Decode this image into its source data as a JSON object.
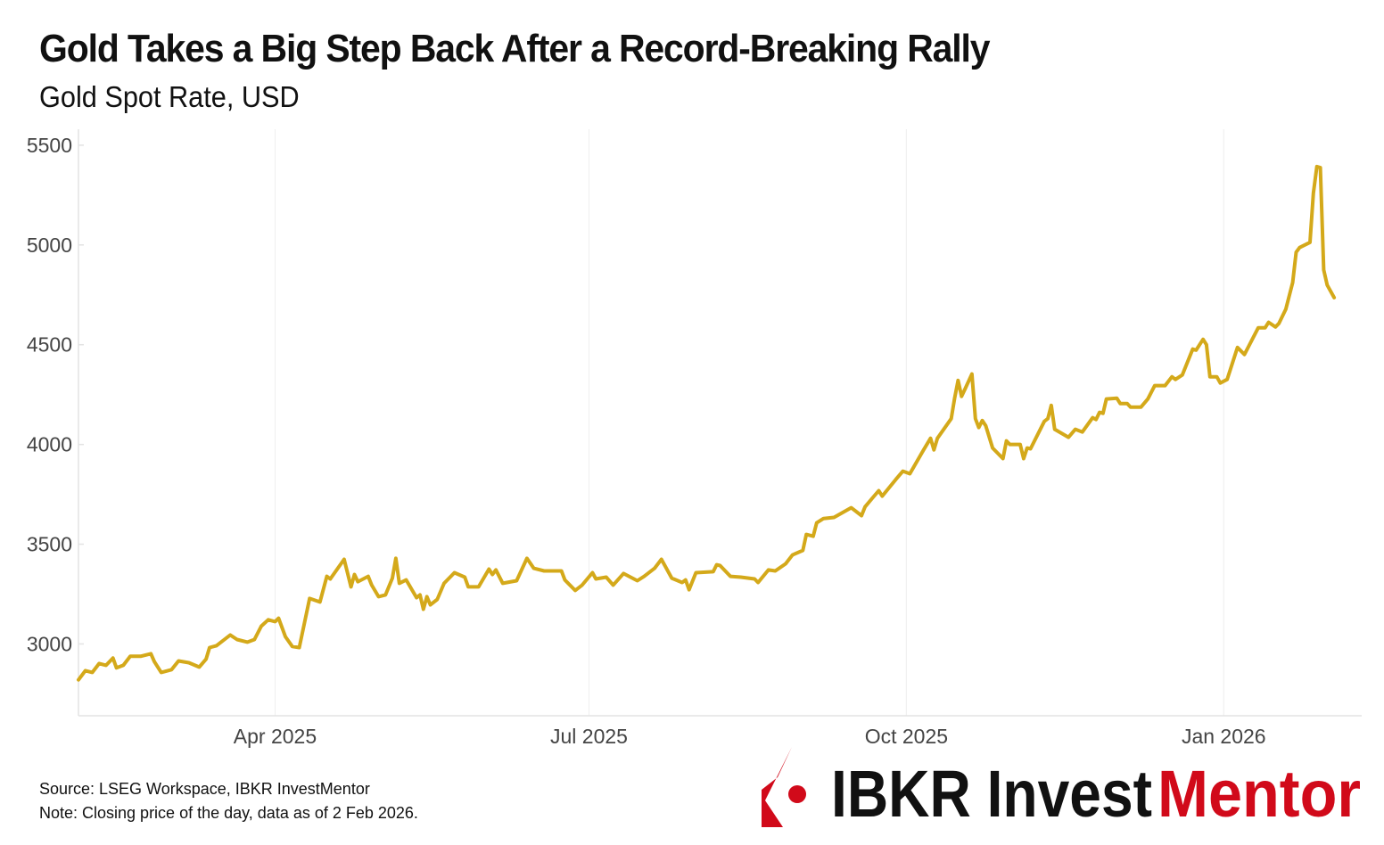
{
  "header": {
    "title": "Gold Takes a Big Step Back After a Record-Breaking Rally",
    "subtitle": "Gold Spot Rate, USD"
  },
  "footer": {
    "source": "Source: LSEG Workspace, IBKR InvestMentor",
    "note": "Note: Closing price of the day, data as of 2 Feb 2026."
  },
  "logo": {
    "text_dark": "IBKR Invest",
    "text_red": "Mentor",
    "red": "#D10A1A"
  },
  "chart_data": {
    "type": "line",
    "title": "Gold Takes a Big Step Back After a Record-Breaking Rally",
    "subtitle": "Gold Spot Rate, USD",
    "xlabel": "",
    "ylabel": "",
    "xlim": [
      "2025-02-03",
      "2026-02-10"
    ],
    "ylim": [
      2640,
      5580
    ],
    "y_ticks": [
      3000,
      3500,
      4000,
      4500,
      5000,
      5500
    ],
    "x_ticks": [
      {
        "date": "2025-04-01",
        "label": "Apr 2025"
      },
      {
        "date": "2025-07-01",
        "label": "Jul 2025"
      },
      {
        "date": "2025-10-01",
        "label": "Oct 2025"
      },
      {
        "date": "2026-01-01",
        "label": "Jan 2026"
      }
    ],
    "grid": "vertical only (months)",
    "line_color": "#D4A91A",
    "series": [
      {
        "x": [
          "2025-02-03",
          "2025-02-05",
          "2025-02-07",
          "2025-02-09",
          "2025-02-11",
          "2025-02-13",
          "2025-02-14",
          "2025-02-16",
          "2025-02-18",
          "2025-02-21",
          "2025-02-24",
          "2025-02-25",
          "2025-02-27",
          "2025-03-02",
          "2025-03-04",
          "2025-03-07",
          "2025-03-10",
          "2025-03-12",
          "2025-03-13",
          "2025-03-15",
          "2025-03-19",
          "2025-03-21",
          "2025-03-24",
          "2025-03-26",
          "2025-03-28",
          "2025-03-30",
          "2025-04-01",
          "2025-04-02",
          "2025-04-04",
          "2025-04-06",
          "2025-04-08",
          "2025-04-11",
          "2025-04-14",
          "2025-04-16",
          "2025-04-17",
          "2025-04-21",
          "2025-04-23",
          "2025-04-24",
          "2025-04-25",
          "2025-04-28",
          "2025-04-29",
          "2025-05-01",
          "2025-05-03",
          "2025-05-05",
          "2025-05-06",
          "2025-05-07",
          "2025-05-09",
          "2025-05-12",
          "2025-05-13",
          "2025-05-14",
          "2025-05-15",
          "2025-05-16",
          "2025-05-18",
          "2025-05-20",
          "2025-05-23",
          "2025-05-26",
          "2025-05-27",
          "2025-05-30",
          "2025-06-02",
          "2025-06-03",
          "2025-06-04",
          "2025-06-06",
          "2025-06-10",
          "2025-06-13",
          "2025-06-15",
          "2025-06-18",
          "2025-06-23",
          "2025-06-24",
          "2025-06-27",
          "2025-06-29",
          "2025-07-02",
          "2025-07-03",
          "2025-07-06",
          "2025-07-08",
          "2025-07-11",
          "2025-07-15",
          "2025-07-17",
          "2025-07-20",
          "2025-07-22",
          "2025-07-25",
          "2025-07-28",
          "2025-07-29",
          "2025-07-30",
          "2025-08-01",
          "2025-08-06",
          "2025-08-07",
          "2025-08-08",
          "2025-08-11",
          "2025-08-14",
          "2025-08-18",
          "2025-08-19",
          "2025-08-22",
          "2025-08-24",
          "2025-08-27",
          "2025-08-29",
          "2025-09-01",
          "2025-09-02",
          "2025-09-04",
          "2025-09-05",
          "2025-09-07",
          "2025-09-10",
          "2025-09-15",
          "2025-09-18",
          "2025-09-19",
          "2025-09-21",
          "2025-09-23",
          "2025-09-24",
          "2025-09-28",
          "2025-09-30",
          "2025-10-02",
          "2025-10-06",
          "2025-10-08",
          "2025-10-09",
          "2025-10-10",
          "2025-10-14",
          "2025-10-15",
          "2025-10-16",
          "2025-10-17",
          "2025-10-18",
          "2025-10-20",
          "2025-10-21",
          "2025-10-22",
          "2025-10-23",
          "2025-10-24",
          "2025-10-26",
          "2025-10-29",
          "2025-10-30",
          "2025-10-31",
          "2025-11-03",
          "2025-11-04",
          "2025-11-05",
          "2025-11-06",
          "2025-11-10",
          "2025-11-11",
          "2025-11-12",
          "2025-11-13",
          "2025-11-17",
          "2025-11-19",
          "2025-11-21",
          "2025-11-24",
          "2025-11-25",
          "2025-11-26",
          "2025-11-27",
          "2025-11-28",
          "2025-12-01",
          "2025-12-02",
          "2025-12-04",
          "2025-12-05",
          "2025-12-08",
          "2025-12-10",
          "2025-12-12",
          "2025-12-15",
          "2025-12-17",
          "2025-12-18",
          "2025-12-20",
          "2025-12-23",
          "2025-12-24",
          "2025-12-26",
          "2025-12-27",
          "2025-12-28",
          "2025-12-30",
          "2025-12-31",
          "2026-01-02",
          "2026-01-05",
          "2026-01-07",
          "2026-01-11",
          "2026-01-13",
          "2026-01-14",
          "2026-01-16",
          "2026-01-17",
          "2026-01-19",
          "2026-01-21",
          "2026-01-22",
          "2026-01-23",
          "2026-01-26",
          "2026-01-27",
          "2026-01-28",
          "2026-01-29",
          "2026-01-30",
          "2026-01-31",
          "2026-02-02"
        ],
        "y": [
          2820,
          2866,
          2857,
          2902,
          2893,
          2929,
          2880,
          2893,
          2938,
          2938,
          2951,
          2911,
          2857,
          2871,
          2915,
          2906,
          2884,
          2924,
          2982,
          2991,
          3045,
          3022,
          3009,
          3022,
          3089,
          3121,
          3112,
          3129,
          3036,
          2987,
          2982,
          3228,
          3210,
          3339,
          3326,
          3424,
          3286,
          3348,
          3312,
          3339,
          3295,
          3237,
          3246,
          3330,
          3429,
          3304,
          3321,
          3232,
          3246,
          3174,
          3237,
          3196,
          3223,
          3304,
          3357,
          3335,
          3286,
          3286,
          3375,
          3348,
          3371,
          3304,
          3317,
          3429,
          3379,
          3366,
          3366,
          3321,
          3268,
          3295,
          3357,
          3326,
          3335,
          3295,
          3353,
          3317,
          3339,
          3379,
          3424,
          3330,
          3308,
          3321,
          3272,
          3357,
          3362,
          3397,
          3393,
          3339,
          3335,
          3326,
          3308,
          3371,
          3366,
          3402,
          3446,
          3469,
          3549,
          3540,
          3607,
          3629,
          3634,
          3683,
          3643,
          3687,
          3728,
          3768,
          3741,
          3826,
          3866,
          3853,
          3973,
          4031,
          3973,
          4031,
          4129,
          4232,
          4321,
          4241,
          4277,
          4353,
          4129,
          4085,
          4120,
          4094,
          3982,
          3929,
          4018,
          4000,
          4000,
          3929,
          3982,
          3978,
          4116,
          4129,
          4196,
          4076,
          4036,
          4076,
          4062,
          4134,
          4125,
          4161,
          4156,
          4228,
          4232,
          4205,
          4205,
          4187,
          4187,
          4228,
          4295,
          4295,
          4339,
          4326,
          4348,
          4478,
          4473,
          4527,
          4500,
          4339,
          4339,
          4308,
          4326,
          4486,
          4451,
          4585,
          4585,
          4612,
          4589,
          4607,
          4678,
          4812,
          4964,
          4987,
          5013,
          5259,
          5393,
          5388,
          4875,
          4799,
          4736
        ]
      }
    ]
  }
}
